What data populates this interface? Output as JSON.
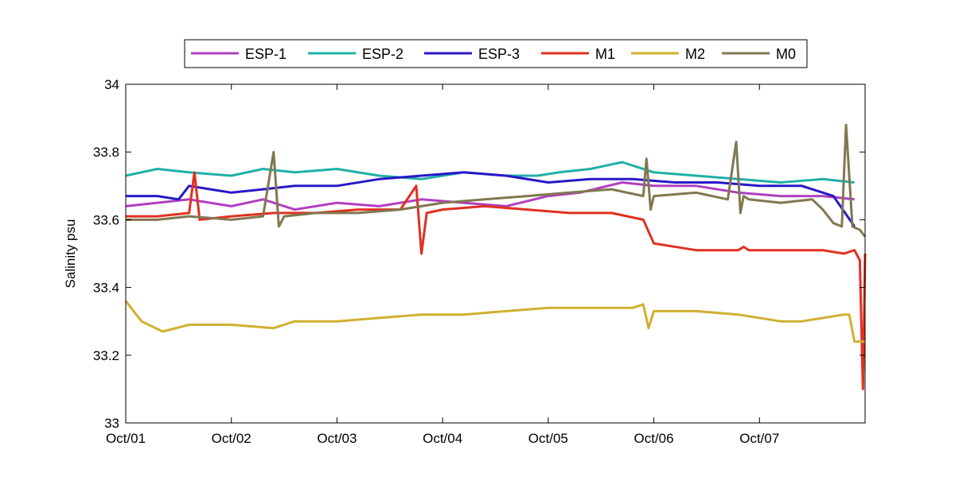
{
  "chart_data": {
    "type": "line",
    "title": "",
    "xlabel": "",
    "ylabel": "Salinity psu",
    "ylim": [
      33,
      34
    ],
    "yticks": [
      33,
      33.2,
      33.4,
      33.6,
      33.8,
      34
    ],
    "ytick_labels": [
      "33",
      "33.2",
      "33.4",
      "33.6",
      "33.8",
      "34"
    ],
    "xlim": [
      0,
      7
    ],
    "xticks": [
      0,
      1,
      2,
      3,
      4,
      5,
      6
    ],
    "xtick_labels": [
      "Oct/01",
      "Oct/02",
      "Oct/03",
      "Oct/04",
      "Oct/05",
      "Oct/06",
      "Oct/07"
    ],
    "x_unit": "days since Oct/01",
    "legend_position": "top-center",
    "series": [
      {
        "name": "ESP-1",
        "color": "#b040c0",
        "x": [
          0,
          0.3,
          0.6,
          1.0,
          1.3,
          1.6,
          2.0,
          2.4,
          2.8,
          3.2,
          3.6,
          4.0,
          4.3,
          4.7,
          5.0,
          5.4,
          5.8,
          6.2,
          6.6,
          6.9
        ],
        "y": [
          33.64,
          33.65,
          33.66,
          33.64,
          33.66,
          33.63,
          33.65,
          33.64,
          33.66,
          33.65,
          33.64,
          33.67,
          33.68,
          33.71,
          33.7,
          33.7,
          33.68,
          33.67,
          33.67,
          33.66
        ]
      },
      {
        "name": "ESP-2",
        "color": "#20b0a8",
        "x": [
          0,
          0.3,
          0.6,
          1.0,
          1.3,
          1.6,
          2.0,
          2.4,
          2.8,
          3.2,
          3.6,
          3.9,
          4.1,
          4.4,
          4.7,
          5.0,
          5.4,
          5.8,
          6.2,
          6.6,
          6.9
        ],
        "y": [
          33.73,
          33.75,
          33.74,
          33.73,
          33.75,
          33.74,
          33.75,
          33.73,
          33.72,
          33.74,
          33.73,
          33.73,
          33.74,
          33.75,
          33.77,
          33.74,
          33.73,
          33.72,
          33.71,
          33.72,
          33.71
        ]
      },
      {
        "name": "ESP-3",
        "color": "#2818c8",
        "x": [
          0,
          0.3,
          0.5,
          0.6,
          1.0,
          1.3,
          1.6,
          2.0,
          2.4,
          2.8,
          3.2,
          3.6,
          4.0,
          4.4,
          4.8,
          5.2,
          5.6,
          6.0,
          6.4,
          6.7,
          6.9
        ],
        "y": [
          33.67,
          33.67,
          33.66,
          33.7,
          33.68,
          33.69,
          33.7,
          33.7,
          33.72,
          33.73,
          33.74,
          33.73,
          33.71,
          33.72,
          33.72,
          33.71,
          33.71,
          33.7,
          33.7,
          33.67,
          33.58
        ]
      },
      {
        "name": "M1",
        "color": "#e03020",
        "x": [
          0,
          0.3,
          0.6,
          0.65,
          0.7,
          1.0,
          1.4,
          1.8,
          2.2,
          2.6,
          2.75,
          2.8,
          2.85,
          3.0,
          3.4,
          3.8,
          4.2,
          4.6,
          4.9,
          5.0,
          5.4,
          5.8,
          5.85,
          5.9,
          6.2,
          6.6,
          6.8,
          6.9,
          6.95,
          6.98,
          7.0
        ],
        "y": [
          33.61,
          33.61,
          33.62,
          33.74,
          33.6,
          33.61,
          33.62,
          33.62,
          33.63,
          33.63,
          33.7,
          33.5,
          33.62,
          33.63,
          33.64,
          33.63,
          33.62,
          33.62,
          33.6,
          33.53,
          33.51,
          33.51,
          33.52,
          33.51,
          33.51,
          33.51,
          33.5,
          33.51,
          33.48,
          33.1,
          33.5
        ]
      },
      {
        "name": "M2",
        "color": "#d0b030",
        "x": [
          0,
          0.05,
          0.15,
          0.35,
          0.6,
          1.0,
          1.4,
          1.6,
          2.0,
          2.4,
          2.8,
          3.2,
          3.6,
          4.0,
          4.4,
          4.8,
          4.9,
          4.95,
          5.0,
          5.4,
          5.8,
          6.2,
          6.4,
          6.8,
          6.85,
          6.9,
          7.0
        ],
        "y": [
          33.36,
          33.34,
          33.3,
          33.27,
          33.29,
          33.29,
          33.28,
          33.3,
          33.3,
          33.31,
          33.32,
          33.32,
          33.33,
          33.34,
          33.34,
          33.34,
          33.35,
          33.28,
          33.33,
          33.33,
          33.32,
          33.3,
          33.3,
          33.32,
          33.32,
          33.24,
          33.24
        ]
      },
      {
        "name": "M0",
        "color": "#807850",
        "x": [
          0,
          0.3,
          0.6,
          1.0,
          1.3,
          1.4,
          1.45,
          1.5,
          1.8,
          2.2,
          2.6,
          3.0,
          3.4,
          3.8,
          4.2,
          4.6,
          4.9,
          4.93,
          4.97,
          5.0,
          5.4,
          5.7,
          5.78,
          5.82,
          5.85,
          5.9,
          6.2,
          6.5,
          6.6,
          6.7,
          6.78,
          6.82,
          6.88,
          6.95,
          7.0
        ],
        "y": [
          33.6,
          33.6,
          33.61,
          33.6,
          33.61,
          33.8,
          33.58,
          33.61,
          33.62,
          33.62,
          33.63,
          33.65,
          33.66,
          33.67,
          33.68,
          33.69,
          33.67,
          33.78,
          33.63,
          33.67,
          33.68,
          33.66,
          33.83,
          33.62,
          33.67,
          33.66,
          33.65,
          33.66,
          33.63,
          33.59,
          33.58,
          33.88,
          33.58,
          33.57,
          33.55
        ]
      }
    ]
  }
}
